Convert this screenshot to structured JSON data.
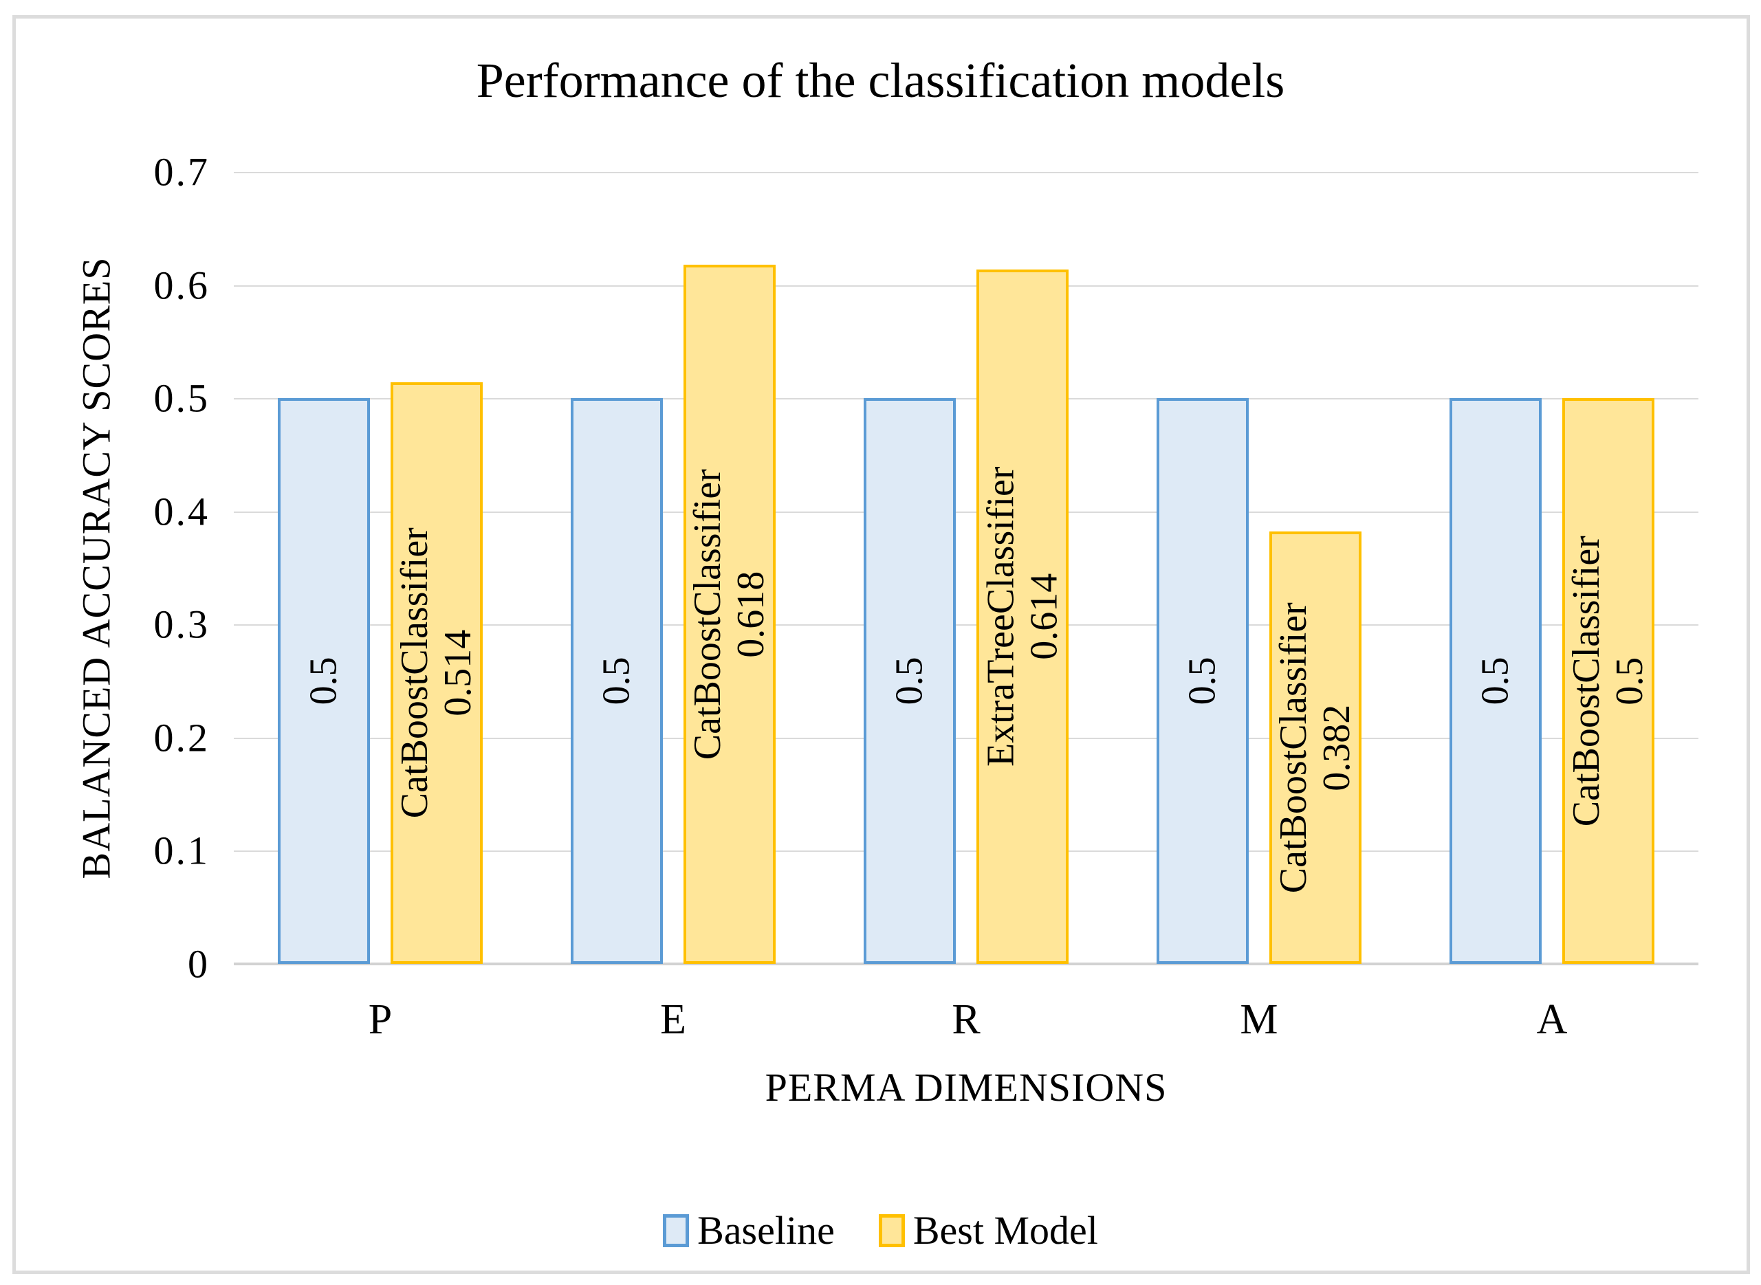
{
  "title": "Performance of the classification models",
  "y_axis": {
    "title": "BALANCED ACCURACY SCORES",
    "ticks": [
      "0.7",
      "0.6",
      "0.5",
      "0.4",
      "0.3",
      "0.2",
      "0.1",
      "0"
    ]
  },
  "x_axis": {
    "title": "PERMA DIMENSIONS",
    "categories": [
      "P",
      "E",
      "R",
      "M",
      "A"
    ]
  },
  "legend": [
    {
      "label": "Baseline",
      "fill": "#DEEAF6",
      "border": "#5B9BD5"
    },
    {
      "label": "Best Model",
      "fill": "#FFE699",
      "border": "#FFC000"
    }
  ],
  "chart_data": {
    "type": "bar",
    "title": "Performance of the classification models",
    "xlabel": "PERMA DIMENSIONS",
    "ylabel": "BALANCED ACCURACY SCORES",
    "ylim": [
      0,
      0.7
    ],
    "ytick_step": 0.1,
    "grid": true,
    "legend_position": "bottom",
    "categories": [
      "P",
      "E",
      "R",
      "M",
      "A"
    ],
    "series": [
      {
        "name": "Baseline",
        "values": [
          0.5,
          0.5,
          0.5,
          0.5,
          0.5
        ],
        "value_labels": [
          "0.5",
          "0.5",
          "0.5",
          "0.5",
          "0.5"
        ]
      },
      {
        "name": "Best Model",
        "values": [
          0.514,
          0.618,
          0.614,
          0.382,
          0.5
        ],
        "value_labels": [
          "0.514",
          "0.618",
          "0.614",
          "0.382",
          "0.5"
        ],
        "model_labels": [
          "CatBoostClassifier",
          "CatBoostClassifier",
          "ExtraTreeClassifier",
          "CatBoostClassifier",
          "CatBoostClassifier"
        ]
      }
    ]
  },
  "colors": {
    "baseline_fill": "#DEEAF6",
    "baseline_border": "#5B9BD5",
    "best_fill": "#FFE699",
    "best_border": "#FFC000",
    "gridline": "#DADADA",
    "axis_line": "#D2D2D2",
    "frame_border": "#DCDCDC",
    "text": "#000000"
  }
}
